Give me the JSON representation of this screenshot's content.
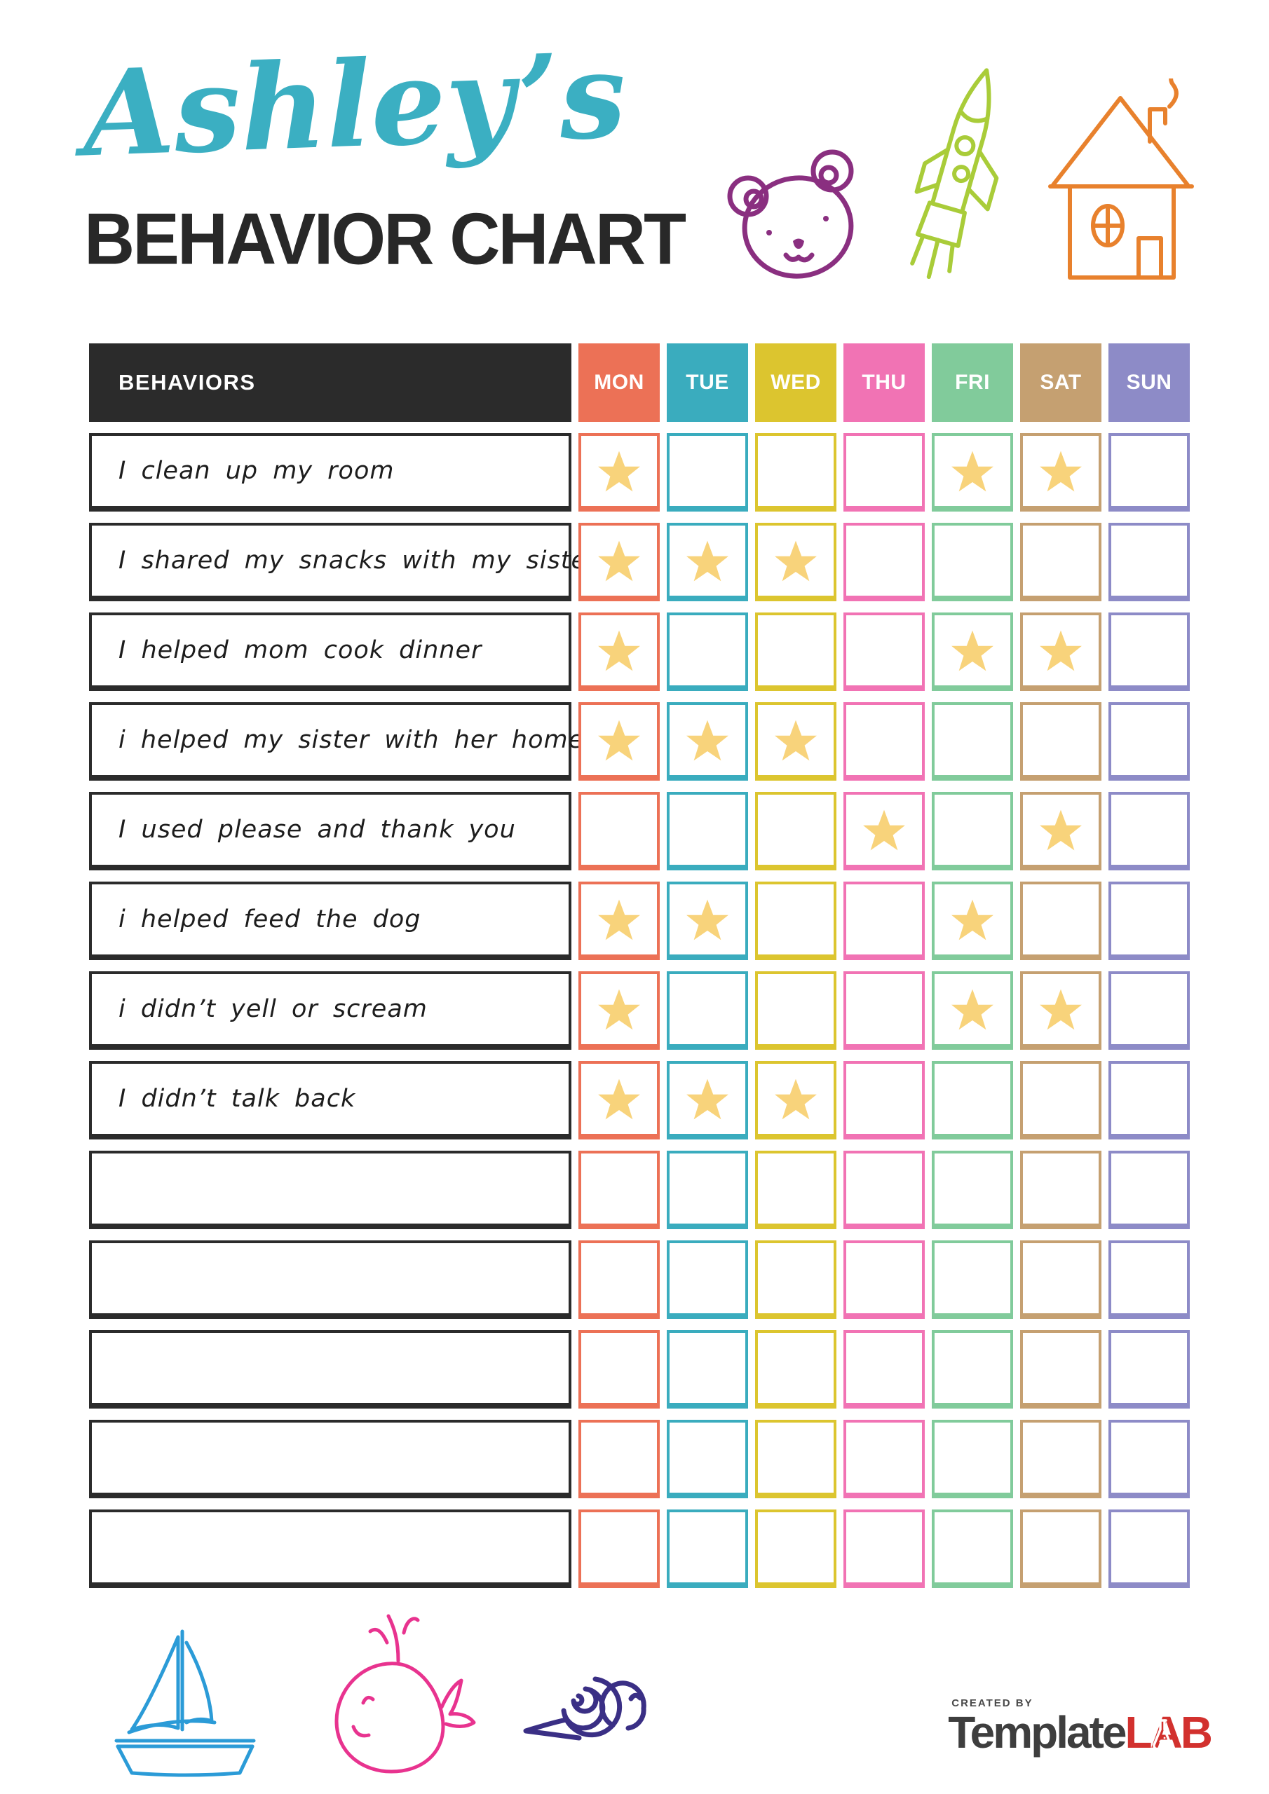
{
  "header": {
    "name_title": "Ashley’s",
    "main_title": "BEHAVIOR CHART",
    "doodle_icons": [
      "bear",
      "rocket",
      "house"
    ]
  },
  "chart_data": {
    "type": "table",
    "behaviors_header": "BEHAVIORS",
    "header_bg": "#2B2B2B",
    "star_color": "#F8D37B",
    "days": [
      {
        "label": "MON",
        "color": "#EC7156"
      },
      {
        "label": "TUE",
        "color": "#3AACBE"
      },
      {
        "label": "WED",
        "color": "#DCC52F"
      },
      {
        "label": "THU",
        "color": "#F173B4"
      },
      {
        "label": "FRI",
        "color": "#81CB9B"
      },
      {
        "label": "SAT",
        "color": "#C5A071"
      },
      {
        "label": "SUN",
        "color": "#8D8BC7"
      }
    ],
    "rows": [
      {
        "behavior": "I clean up my room",
        "stars": [
          "MON",
          "FRI",
          "SAT"
        ]
      },
      {
        "behavior": "I shared my snacks with my sister",
        "stars": [
          "MON",
          "TUE",
          "WED"
        ]
      },
      {
        "behavior": "I helped mom cook dinner",
        "stars": [
          "MON",
          "FRI",
          "SAT"
        ]
      },
      {
        "behavior": "i helped my sister with her homework",
        "stars": [
          "MON",
          "TUE",
          "WED"
        ]
      },
      {
        "behavior": "I used please and thank you",
        "stars": [
          "THU",
          "SAT"
        ]
      },
      {
        "behavior": "i helped feed the dog",
        "stars": [
          "MON",
          "TUE",
          "FRI"
        ]
      },
      {
        "behavior": "i didn’t yell or scream",
        "stars": [
          "MON",
          "FRI",
          "SAT"
        ]
      },
      {
        "behavior": "I didn’t talk back",
        "stars": [
          "MON",
          "TUE",
          "WED"
        ]
      },
      {
        "behavior": "",
        "stars": []
      },
      {
        "behavior": "",
        "stars": []
      },
      {
        "behavior": "",
        "stars": []
      },
      {
        "behavior": "",
        "stars": []
      },
      {
        "behavior": "",
        "stars": []
      }
    ]
  },
  "footer": {
    "doodle_icons": [
      "sailboat",
      "whale",
      "snail"
    ],
    "logo": {
      "created_by": "CREATED BY",
      "brand_template": "Template",
      "brand_lab": "LAB"
    }
  },
  "colors": {
    "title_teal": "#3BAFC2",
    "title_black": "#282828",
    "bear_purple": "#8A2F80",
    "rocket_green": "#A9CC39",
    "house_orange": "#E8812D",
    "sailboat_blue": "#2B9BD7",
    "whale_pink": "#E8338F",
    "snail_indigo": "#3A2F85",
    "logo_red": "#D2312E",
    "logo_gray": "#3E3E3E"
  }
}
